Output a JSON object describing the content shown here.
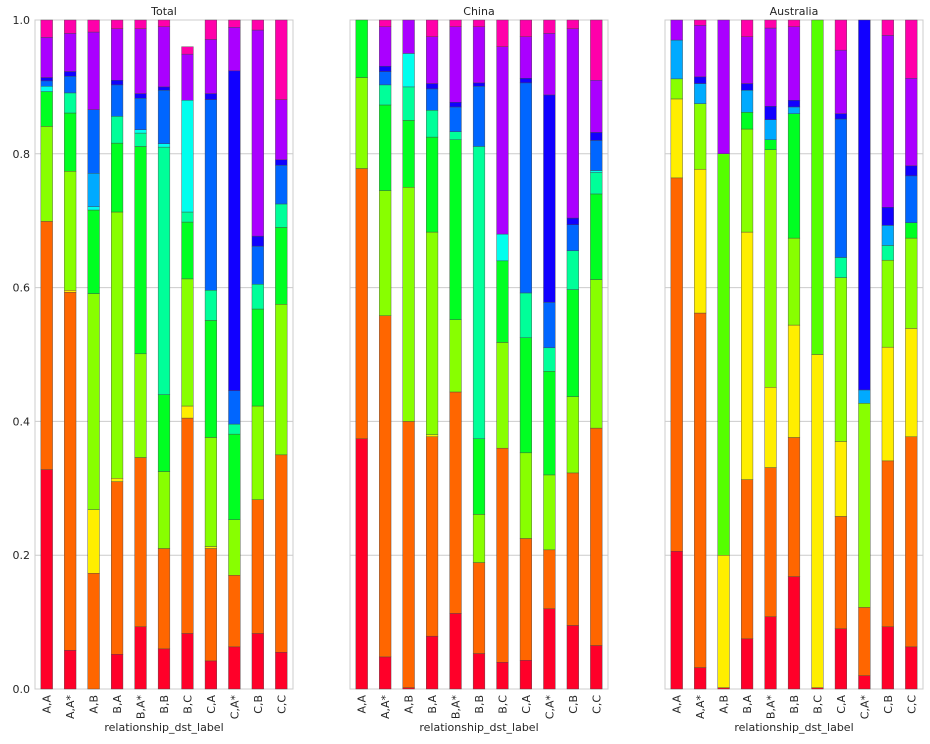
{
  "chart_data": {
    "type": "bar",
    "stacked": true,
    "ylim": [
      0,
      1
    ],
    "yticks": [
      "0.0",
      "0.2",
      "0.4",
      "0.6",
      "0.8",
      "1.0"
    ],
    "grid": "horizontal",
    "categories": [
      "A,A",
      "A,A*",
      "A,B",
      "B,A",
      "B,A*",
      "B,B",
      "B,C",
      "C,A",
      "C,A*",
      "C,B",
      "C,C"
    ],
    "colors": [
      "#ff0029",
      "#ff6600",
      "#ffee00",
      "#88ff00",
      "#55ff00",
      "#00ff22",
      "#00ff99",
      "#00ffee",
      "#00aaff",
      "#0066ff",
      "#1100ff",
      "#aa00ff",
      "#ff00aa"
    ],
    "panels": [
      {
        "title": "Total",
        "xlabel": "relationship_dst_label",
        "stacks": [
          [
            0.328,
            0.371,
            0.0,
            0.142,
            0.0,
            0.052,
            0.0,
            0.008,
            0.0,
            0.008,
            0.005,
            0.06,
            0.026
          ],
          [
            0.058,
            0.535,
            0.003,
            0.178,
            0.0,
            0.087,
            0.03,
            0.0,
            0.0,
            0.025,
            0.007,
            0.057,
            0.02
          ],
          [
            0.0,
            0.173,
            0.095,
            0.323,
            0.0,
            0.125,
            0.0,
            0.005,
            0.05,
            0.095,
            0.0,
            0.116,
            0.018
          ],
          [
            0.052,
            0.258,
            0.005,
            0.398,
            0.0,
            0.103,
            0.04,
            0.0,
            0.0,
            0.047,
            0.007,
            0.077,
            0.013
          ],
          [
            0.093,
            0.253,
            0.0,
            0.155,
            0.0,
            0.31,
            0.02,
            0.005,
            0.0,
            0.047,
            0.007,
            0.097,
            0.013
          ],
          [
            0.06,
            0.15,
            0.0,
            0.115,
            0.0,
            0.115,
            0.37,
            0.005,
            0.0,
            0.08,
            0.005,
            0.09,
            0.01
          ],
          [
            0.083,
            0.322,
            0.018,
            0.19,
            0.0,
            0.085,
            0.015,
            0.167,
            0.0,
            0.0,
            0.0,
            0.069,
            0.011
          ],
          [
            0.042,
            0.168,
            0.003,
            0.163,
            0.0,
            0.175,
            0.045,
            0.0,
            0.0,
            0.285,
            0.009,
            0.081,
            0.029
          ],
          [
            0.063,
            0.107,
            0.0,
            0.083,
            0.0,
            0.128,
            0.015,
            0.0,
            0.0,
            0.05,
            0.478,
            0.065,
            0.011
          ],
          [
            0.083,
            0.2,
            0.0,
            0.14,
            0.0,
            0.145,
            0.037,
            0.0,
            0.0,
            0.057,
            0.015,
            0.308,
            0.015
          ],
          [
            0.055,
            0.295,
            0.0,
            0.225,
            0.0,
            0.115,
            0.035,
            0.0,
            0.0,
            0.058,
            0.008,
            0.09,
            0.119
          ]
        ]
      },
      {
        "title": "China",
        "xlabel": "relationship_dst_label",
        "stacks": [
          [
            0.374,
            0.404,
            0.0,
            0.136,
            0.0,
            0.086,
            0.0,
            0.0,
            0.0,
            0.0,
            0.0,
            0.0,
            0.0
          ],
          [
            0.048,
            0.51,
            0.0,
            0.187,
            0.0,
            0.128,
            0.03,
            0.0,
            0.0,
            0.02,
            0.008,
            0.059,
            0.01
          ],
          [
            0.002,
            0.398,
            0.0,
            0.35,
            0.0,
            0.1,
            0.05,
            0.05,
            0.0,
            0.0,
            0.0,
            0.05,
            0.0
          ],
          [
            0.079,
            0.298,
            0.003,
            0.303,
            0.0,
            0.142,
            0.04,
            0.0,
            0.0,
            0.032,
            0.008,
            0.07,
            0.025
          ],
          [
            0.113,
            0.331,
            0.0,
            0.108,
            0.0,
            0.269,
            0.012,
            0.0,
            0.0,
            0.037,
            0.007,
            0.113,
            0.01
          ],
          [
            0.053,
            0.136,
            0.0,
            0.072,
            0.0,
            0.113,
            0.437,
            0.0,
            0.0,
            0.09,
            0.005,
            0.084,
            0.01
          ],
          [
            0.04,
            0.32,
            0.0,
            0.158,
            0.0,
            0.122,
            0.0,
            0.04,
            0.0,
            0.0,
            0.0,
            0.28,
            0.04
          ],
          [
            0.043,
            0.182,
            0.0,
            0.128,
            0.0,
            0.172,
            0.067,
            0.0,
            0.0,
            0.314,
            0.007,
            0.062,
            0.025
          ],
          [
            0.12,
            0.088,
            0.0,
            0.112,
            0.0,
            0.155,
            0.035,
            0.0,
            0.0,
            0.068,
            0.31,
            0.092,
            0.02
          ],
          [
            0.095,
            0.228,
            0.0,
            0.114,
            0.0,
            0.16,
            0.058,
            0.0,
            0.0,
            0.039,
            0.01,
            0.283,
            0.013
          ],
          [
            0.065,
            0.325,
            0.0,
            0.222,
            0.0,
            0.128,
            0.032,
            0.003,
            0.0,
            0.045,
            0.012,
            0.078,
            0.09
          ]
        ]
      },
      {
        "title": "Australia",
        "xlabel": "relationship_dst_label",
        "stacks": [
          [
            0.206,
            0.558,
            0.118,
            0.03,
            0.0,
            0.0,
            0.0,
            0.0,
            0.058,
            0.0,
            0.0,
            0.03,
            0.0
          ],
          [
            0.032,
            0.53,
            0.215,
            0.098,
            0.0,
            0.0,
            0.0,
            0.0,
            0.03,
            0.0,
            0.01,
            0.077,
            0.008
          ],
          [
            0.002,
            0.0,
            0.198,
            0.0,
            0.6,
            0.0,
            0.0,
            0.0,
            0.0,
            0.0,
            0.0,
            0.2,
            0.0
          ],
          [
            0.075,
            0.238,
            0.37,
            0.154,
            0.0,
            0.025,
            0.0,
            0.0,
            0.033,
            0.0,
            0.01,
            0.07,
            0.025
          ],
          [
            0.108,
            0.223,
            0.12,
            0.355,
            0.0,
            0.015,
            0.0,
            0.0,
            0.03,
            0.0,
            0.02,
            0.117,
            0.012
          ],
          [
            0.168,
            0.208,
            0.168,
            0.13,
            0.0,
            0.186,
            0.0,
            0.0,
            0.01,
            0.0,
            0.01,
            0.11,
            0.01
          ],
          [
            0.002,
            0.0,
            0.498,
            0.0,
            0.5,
            0.0,
            0.0,
            0.0,
            0.0,
            0.0,
            0.0,
            0.0,
            0.0
          ],
          [
            0.09,
            0.168,
            0.112,
            0.245,
            0.0,
            0.0,
            0.03,
            0.0,
            0.0,
            0.207,
            0.008,
            0.095,
            0.045
          ],
          [
            0.02,
            0.102,
            0.0,
            0.305,
            0.0,
            0.0,
            0.0,
            0.0,
            0.02,
            0.0,
            0.553,
            0.0,
            0.0
          ],
          [
            0.093,
            0.248,
            0.17,
            0.13,
            0.0,
            0.0,
            0.022,
            0.0,
            0.03,
            0.0,
            0.027,
            0.257,
            0.023
          ],
          [
            0.063,
            0.314,
            0.162,
            0.135,
            0.0,
            0.023,
            0.0,
            0.0,
            0.0,
            0.07,
            0.015,
            0.131,
            0.087
          ]
        ]
      }
    ]
  }
}
